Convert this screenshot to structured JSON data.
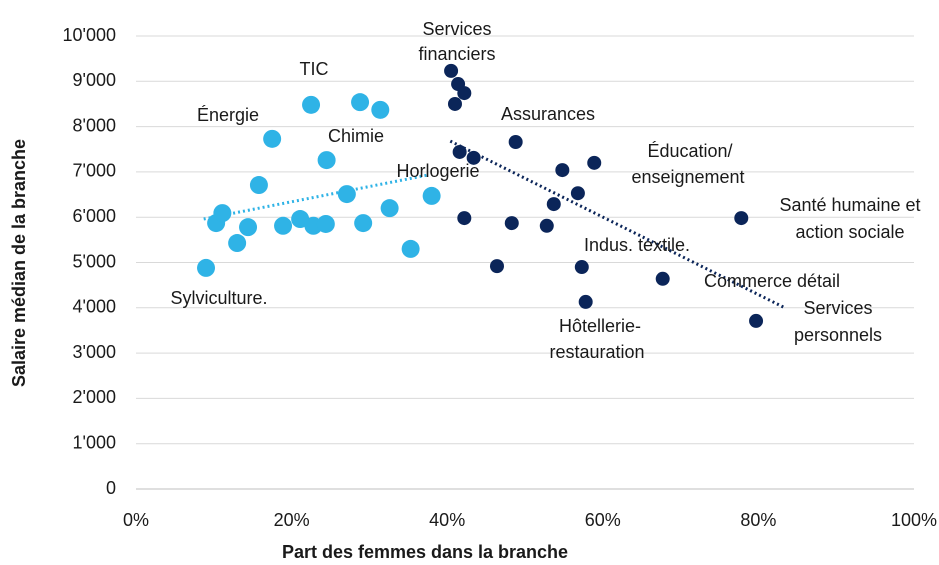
{
  "chart_data": {
    "type": "scatter",
    "xlabel": "Part des femmes dans la branche",
    "ylabel": "Salaire médian de la branche",
    "xlim": [
      0,
      100
    ],
    "xticks": [
      {
        "value": 0,
        "label": "0%"
      },
      {
        "value": 20,
        "label": "20%"
      },
      {
        "value": 40,
        "label": "40%"
      },
      {
        "value": 60,
        "label": "60%"
      },
      {
        "value": 80,
        "label": "80%"
      },
      {
        "value": 100,
        "label": "100%"
      }
    ],
    "ylim": [
      0,
      10000
    ],
    "yticks": [
      0,
      {
        "value": 1000,
        "label": "1'000"
      },
      {
        "value": 2000,
        "label": "2'000"
      },
      {
        "value": 3000,
        "label": "3'000"
      },
      {
        "value": 4000,
        "label": "4'000"
      },
      {
        "value": 5000,
        "label": "5'000"
      },
      {
        "value": 6000,
        "label": "6'000"
      },
      {
        "value": 7000,
        "label": "7'000"
      },
      {
        "value": 8000,
        "label": "8'000"
      },
      {
        "value": 9000,
        "label": "9'000"
      },
      {
        "value": 10000,
        "label": "10'000"
      }
    ],
    "grid": true,
    "series": [
      {
        "color": "#2fb3e6",
        "x": [
          9.0,
          10.3,
          11.1,
          13.0,
          14.4,
          15.8,
          17.5,
          18.9,
          21.1,
          22.5,
          22.8,
          24.4,
          24.5,
          27.1,
          28.8,
          29.2,
          31.4,
          32.6,
          35.3,
          38.0
        ],
        "values": [
          4880,
          5870,
          6090,
          5430,
          5780,
          6710,
          7730,
          5810,
          5960,
          8480,
          5810,
          5850,
          7260,
          6510,
          8540,
          5870,
          8370,
          6200,
          5300,
          6470
        ],
        "trendline": {
          "x": [
            8.7,
            37.5
          ],
          "values": [
            5960,
            6930
          ]
        }
      },
      {
        "color": "#0b2559",
        "x": [
          40.5,
          41.0,
          41.4,
          42.2,
          41.6,
          42.2,
          43.4,
          46.4,
          48.3,
          48.8,
          52.8,
          53.7,
          54.8,
          56.8,
          57.3,
          57.8,
          58.9,
          67.7,
          77.8,
          79.7
        ],
        "values": [
          9230,
          8500,
          8940,
          8740,
          7440,
          5980,
          7310,
          4920,
          5870,
          7660,
          5810,
          6290,
          7040,
          6530,
          4900,
          4130,
          7200,
          4640,
          5980,
          3710
        ],
        "trendline": {
          "x": [
            40.4,
            83.4
          ],
          "values": [
            7680,
            4000
          ]
        }
      }
    ],
    "annotations": [
      "Services",
      "financiers",
      "TIC",
      "Énergie",
      "Chimie",
      "Assurances",
      "Éducation/",
      "enseignement",
      "Horlogerie",
      "Santé humaine et",
      "action sociale",
      "Indus. textile.",
      "Commerce détail",
      "Sylviculture.",
      "Services",
      "personnels",
      "Hôtellerie-",
      "restauration"
    ]
  }
}
